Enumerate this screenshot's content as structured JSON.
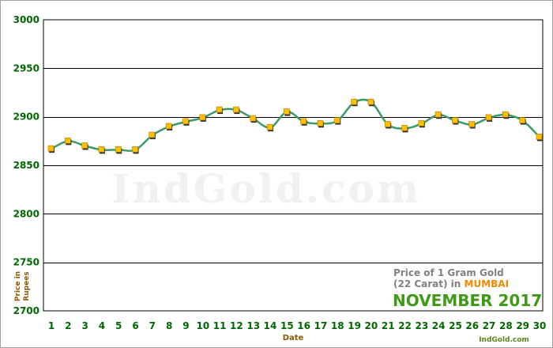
{
  "chart_data": {
    "type": "line",
    "title": "Price of 1 Gram Gold (22 Carat) in MUMBAI",
    "title_lines": {
      "line1": "Price of 1 Gram Gold",
      "line2_prefix": "(22 Carat) in ",
      "city": "MUMBAI",
      "period": "NOVEMBER 2017"
    },
    "xlabel": "Date",
    "ylabel_line1": "Price in",
    "ylabel_line2": "Rupees",
    "ylim": [
      2700,
      3000
    ],
    "yticks": [
      2700,
      2750,
      2800,
      2850,
      2900,
      2950,
      3000
    ],
    "categories": [
      "1",
      "2",
      "3",
      "4",
      "5",
      "6",
      "7",
      "8",
      "9",
      "10",
      "11",
      "12",
      "13",
      "14",
      "15",
      "16",
      "17",
      "18",
      "19",
      "20",
      "21",
      "22",
      "23",
      "24",
      "25",
      "26",
      "27",
      "28",
      "29",
      "30"
    ],
    "values": [
      2867,
      2875,
      2870,
      2866,
      2866,
      2866,
      2881,
      2890,
      2895,
      2899,
      2907,
      2907,
      2898,
      2889,
      2905,
      2895,
      2893,
      2896,
      2915,
      2915,
      2892,
      2888,
      2893,
      2902,
      2896,
      2892,
      2899,
      2902,
      2896,
      2879
    ],
    "grid": true,
    "watermark": "IndGold.com",
    "credit": "IndGold.com",
    "colors": {
      "line": "#3a9a6a",
      "marker_fill": "#ffc000",
      "marker_shadow": "#333333",
      "tick_text": "#006600",
      "axis_label": "#8a5a00"
    }
  }
}
